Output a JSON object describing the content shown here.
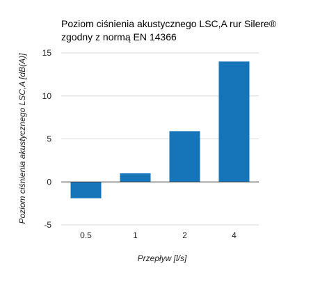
{
  "chart_data": {
    "type": "bar",
    "title_lines": [
      "Poziom ciśnienia akustycznego LSC,A  rur Silere®",
      "zgodny z normą EN 14366"
    ],
    "xlabel": "Przepływ [l/s]",
    "ylabel": "Poziom ciśnienia akustycznego LSC,A  [dB(A)]",
    "categories": [
      "0.5",
      "1",
      "2",
      "4"
    ],
    "values": [
      -1.9,
      1.0,
      5.9,
      14.0
    ],
    "ylim": [
      -5,
      15
    ],
    "yticks": [
      -5,
      0,
      5,
      10,
      15
    ],
    "ytick_labels": [
      "-5",
      "0",
      "5",
      "10",
      "15"
    ],
    "grid": true,
    "legend": "none",
    "bar_color": "#1674b9"
  }
}
